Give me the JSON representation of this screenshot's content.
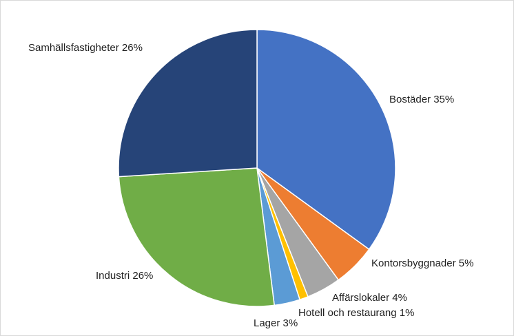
{
  "chart_data": {
    "type": "pie",
    "title": "",
    "start_angle_deg": 0,
    "direction": "clockwise",
    "legend": "none",
    "slices": [
      {
        "name": "Bostäder",
        "value": 35,
        "label": "Bostäder 35%",
        "color": "#4472C4"
      },
      {
        "name": "Kontorsbyggnader",
        "value": 5,
        "label": "Kontorsbyggnader 5%",
        "color": "#ED7D31"
      },
      {
        "name": "Affärslokaler",
        "value": 4,
        "label": "Affärslokaler 4%",
        "color": "#A5A5A5"
      },
      {
        "name": "Hotell och restaurang",
        "value": 1,
        "label": "Hotell och restaurang 1%",
        "color": "#FFC000"
      },
      {
        "name": "Lager",
        "value": 3,
        "label": "Lager 3%",
        "color": "#5B9BD5"
      },
      {
        "name": "Industri",
        "value": 26,
        "label": "Industri 26%",
        "color": "#70AD47"
      },
      {
        "name": "Samhällsfastigheter",
        "value": 26,
        "label": "Samhällsfastigheter 26%",
        "color": "#264478"
      }
    ]
  }
}
